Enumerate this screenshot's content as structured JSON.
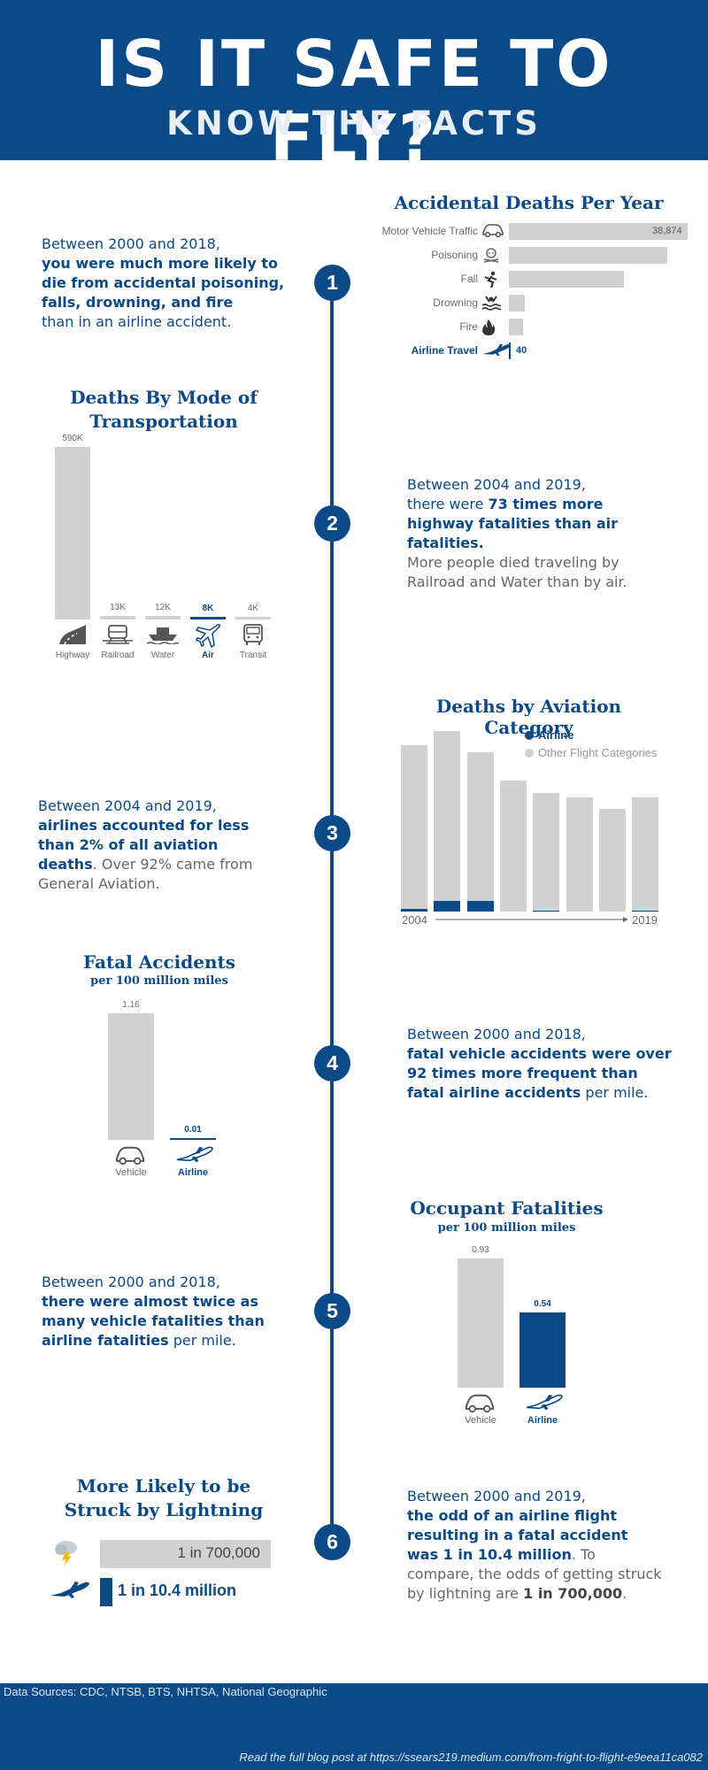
{
  "header": {
    "title": "IS IT SAFE TO FLY?",
    "subtitle": "KNOW THE FACTS"
  },
  "steps": [
    "1",
    "2",
    "3",
    "4",
    "5",
    "6"
  ],
  "section1": {
    "text_a": "Between 2000 and 2018,",
    "text_b": "you were much more likely to die from accidental poisoning, falls, drowning, and fire",
    "text_c": "than in an airline accident."
  },
  "accidental_chart": {
    "title": "Accidental Deaths Per Year",
    "rows": [
      {
        "label": "Motor Vehicle Traffic",
        "icon": "car-icon",
        "value_label": "38,874"
      },
      {
        "label": "Poisoning",
        "icon": "skull-icon",
        "value_label": ""
      },
      {
        "label": "Fall",
        "icon": "falling-person-icon",
        "value_label": ""
      },
      {
        "label": "Drowning",
        "icon": "drowning-icon",
        "value_label": ""
      },
      {
        "label": "Fire",
        "icon": "flame-icon",
        "value_label": ""
      },
      {
        "label": "Airline Travel",
        "icon": "airplane-icon",
        "value_label": "40"
      }
    ]
  },
  "transport_chart": {
    "title_a": "Deaths By Mode of",
    "title_b": "Transportation",
    "bars": [
      {
        "label": "Highway",
        "value_label": "590K",
        "icon": "highway-icon"
      },
      {
        "label": "Railroad",
        "value_label": "13K",
        "icon": "train-icon"
      },
      {
        "label": "Water",
        "value_label": "12K",
        "icon": "ship-icon"
      },
      {
        "label": "Air",
        "value_label": "8K",
        "icon": "airplane-icon"
      },
      {
        "label": "Transit",
        "value_label": "4K",
        "icon": "bus-icon"
      }
    ]
  },
  "section2": {
    "text_a": "Between 2004 and 2019,",
    "text_b": "there were ",
    "text_c": "73 times more highway fatalities than air fatalities.",
    "text_d": "More people died traveling by Railroad and Water than by air."
  },
  "aviation_chart": {
    "title": "Deaths by Aviation Category",
    "legend_airline": "Airline",
    "legend_other": "Other Flight Categories",
    "x_start": "2004",
    "x_end": "2019"
  },
  "section3": {
    "text_a": "Between 2004 and 2019,",
    "text_b": "airlines accounted for less than 2% of all aviation deaths",
    "text_c": ". Over 92% came from General Aviation."
  },
  "fatal_chart": {
    "title": "Fatal Accidents",
    "subtitle": "per 100 million miles",
    "vehicle_value": "1.16",
    "airline_value": "0.01",
    "vehicle_label": "Vehicle",
    "airline_label": "Airline"
  },
  "section4": {
    "text_a": "Between 2000 and 2018,",
    "text_b": "fatal vehicle accidents were over 92 times more frequent than fatal airline accidents",
    "text_c": " per mile."
  },
  "occupant_chart": {
    "title": "Occupant Fatalities",
    "subtitle": "per 100 million miles",
    "vehicle_value": "0.93",
    "airline_value": "0.54",
    "vehicle_label": "Vehicle",
    "airline_label": "Airline"
  },
  "section5": {
    "text_a": "Between 2000 and 2018,",
    "text_b": "there were almost twice as many vehicle fatalities than airline fatalities",
    "text_c": " per mile."
  },
  "lightning_chart": {
    "title_a": "More Likely to be",
    "title_b": "Struck by Lightning",
    "lightning_value": "1 in 700,000",
    "airline_value": "1 in 10.4 million"
  },
  "section6": {
    "text_a": "Between 2000 and 2019,",
    "text_b": "the odd of an airline flight resulting in a fatal accident was 1 in 10.4 million",
    "text_c": ". To compare, the odds of getting struck by lightning are ",
    "text_d": "1 in 700,000",
    "text_e": "."
  },
  "footer": {
    "sources": "Data Sources: CDC, NTSB, BTS, NHTSA, National Geographic",
    "link": "Read the full blog post at https://ssears219.medium.com/from-fright-to-flight-e9eea11ca082"
  },
  "chart_data": [
    {
      "type": "bar",
      "title": "Accidental Deaths Per Year",
      "categories": [
        "Motor Vehicle Traffic",
        "Poisoning",
        "Fall",
        "Drowning",
        "Fire",
        "Airline Travel"
      ],
      "values": [
        38874,
        34500,
        25000,
        3500,
        3000,
        40
      ],
      "orientation": "horizontal"
    },
    {
      "type": "bar",
      "title": "Deaths By Mode of Transportation",
      "categories": [
        "Highway",
        "Railroad",
        "Water",
        "Air",
        "Transit"
      ],
      "values": [
        590000,
        13000,
        12000,
        8000,
        4000
      ]
    },
    {
      "type": "bar",
      "title": "Deaths by Aviation Category",
      "series": [
        {
          "name": "Airline",
          "values": [
            14,
            50,
            52,
            0,
            1,
            0,
            0,
            1
          ]
        },
        {
          "name": "Other Flight Categories",
          "values": [
            770,
            800,
            700,
            615,
            558,
            538,
            484,
            537
          ]
        }
      ],
      "x": [
        "2004",
        "",
        "",
        "",
        "",
        "",
        "",
        "2019"
      ],
      "stacked": true
    },
    {
      "type": "bar",
      "title": "Fatal Accidents",
      "categories": [
        "Vehicle",
        "Airline"
      ],
      "values": [
        1.16,
        0.01
      ]
    },
    {
      "type": "bar",
      "title": "Occupant Fatalities",
      "categories": [
        "Vehicle",
        "Airline"
      ],
      "values": [
        0.93,
        0.54
      ]
    }
  ],
  "colors": {
    "navy": "#0b4a87",
    "gray_bar": "#d1d1d1",
    "text_gray": "#666666"
  }
}
